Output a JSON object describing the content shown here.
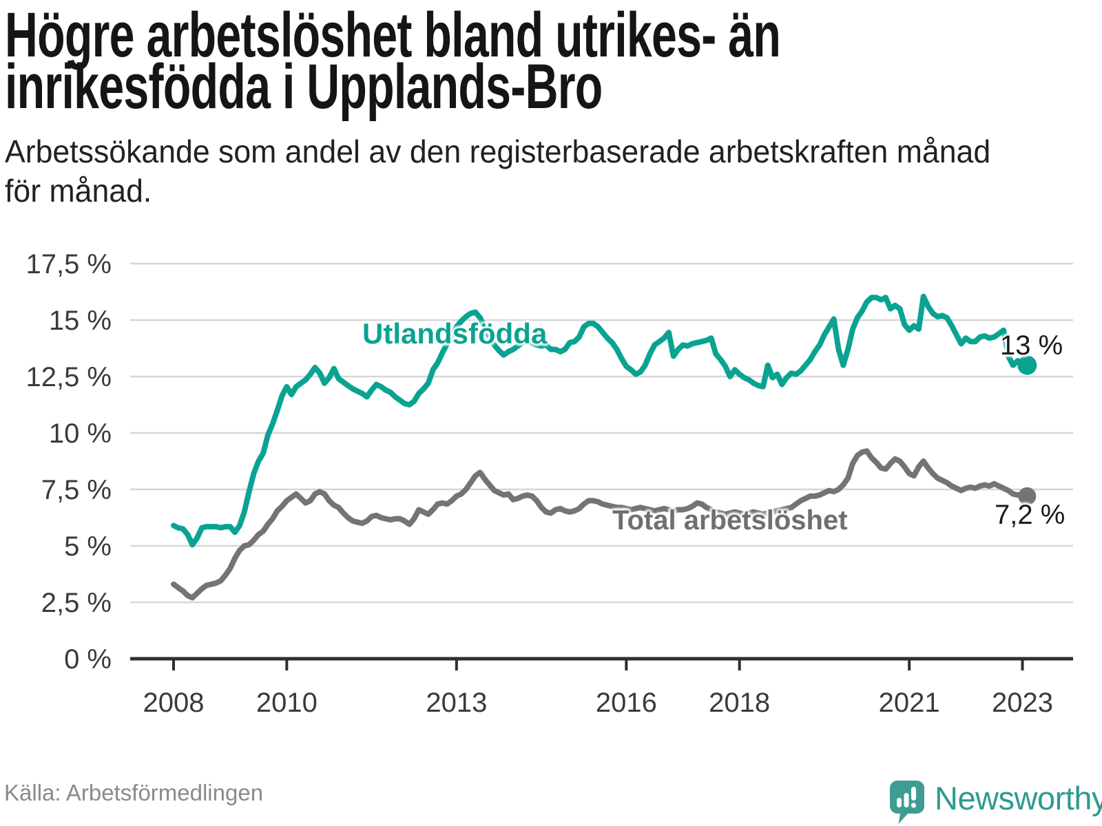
{
  "header": {
    "title_line1": "Högre arbetslöshet bland utrikes- än",
    "title_line2": "inrikesfödda i Upplands-Bro",
    "subtitle_line1": "Arbetssökande som andel av den registerbaserade arbetskraften månad",
    "subtitle_line2": "för månad."
  },
  "footer": {
    "source": "Källa: Arbetsförmedlingen",
    "brand": "Newsworthy"
  },
  "colors": {
    "accent_teal": "#0aa392",
    "line_gray": "#747474",
    "label_gray": "#6f6f6f",
    "gridline": "#d6d6d6",
    "axis": "#2e2e2e",
    "axis_text": "#3a3a3a",
    "title_text": "#151515",
    "end_label_text": "#1a1a1a",
    "source_text": "#8a8a8a",
    "brand_teal": "#2e9a90",
    "logo_bubble": "#3e9c93"
  },
  "chart_data": {
    "type": "line",
    "x_unit": "month",
    "x_start": "2008-01",
    "x_end": "2023-02",
    "grid": true,
    "ylim": [
      0,
      17.5
    ],
    "xlim_years": [
      2008,
      2023.17
    ],
    "y_ticks": [
      {
        "label": "17,5 %",
        "value": 17.5
      },
      {
        "label": "15 %",
        "value": 15
      },
      {
        "label": "12,5 %",
        "value": 12.5
      },
      {
        "label": "10 %",
        "value": 10
      },
      {
        "label": "7,5 %",
        "value": 7.5
      },
      {
        "label": "5 %",
        "value": 5
      },
      {
        "label": "2,5 %",
        "value": 2.5
      },
      {
        "label": "0 %",
        "value": 0
      }
    ],
    "x_ticks": [
      {
        "label": "2008",
        "year": 2008
      },
      {
        "label": "2010",
        "year": 2010
      },
      {
        "label": "2013",
        "year": 2013
      },
      {
        "label": "2016",
        "year": 2016
      },
      {
        "label": "2018",
        "year": 2018
      },
      {
        "label": "2021",
        "year": 2021
      },
      {
        "label": "2023",
        "year": 2023
      }
    ],
    "series": [
      {
        "name": "Utlandsfödda",
        "color": "#0aa392",
        "end_label": "13 %",
        "final_value": 13.0,
        "dot_radius": 14,
        "values": [
          5.9,
          5.8,
          5.75,
          5.5,
          5.05,
          5.35,
          5.8,
          5.85,
          5.85,
          5.85,
          5.8,
          5.85,
          5.85,
          5.6,
          5.9,
          6.5,
          7.4,
          8.2,
          8.75,
          9.1,
          9.9,
          10.4,
          11.0,
          11.65,
          12.05,
          11.7,
          12.05,
          12.2,
          12.35,
          12.6,
          12.9,
          12.65,
          12.2,
          12.45,
          12.85,
          12.4,
          12.25,
          12.1,
          11.95,
          11.85,
          11.75,
          11.6,
          11.9,
          12.15,
          12.05,
          11.9,
          11.8,
          11.6,
          11.45,
          11.3,
          11.25,
          11.4,
          11.75,
          11.95,
          12.2,
          12.8,
          13.1,
          13.55,
          13.95,
          14.35,
          14.7,
          14.95,
          15.15,
          15.3,
          15.35,
          15.1,
          14.65,
          14.25,
          13.9,
          13.65,
          13.45,
          13.6,
          13.7,
          13.85,
          14.0,
          14.1,
          14.0,
          13.9,
          13.85,
          13.9,
          13.7,
          13.7,
          13.6,
          13.7,
          14.0,
          14.05,
          14.25,
          14.7,
          14.85,
          14.85,
          14.7,
          14.45,
          14.2,
          14.0,
          13.7,
          13.3,
          12.95,
          12.8,
          12.6,
          12.7,
          13.0,
          13.5,
          13.9,
          14.05,
          14.2,
          14.45,
          13.4,
          13.7,
          13.9,
          13.85,
          13.95,
          14.0,
          14.05,
          14.1,
          14.2,
          13.5,
          13.25,
          12.95,
          12.5,
          12.8,
          12.6,
          12.45,
          12.35,
          12.2,
          12.1,
          12.05,
          13.0,
          12.45,
          12.6,
          12.15,
          12.45,
          12.65,
          12.6,
          12.75,
          13.0,
          13.25,
          13.6,
          13.9,
          14.35,
          14.7,
          15.05,
          13.7,
          13.0,
          13.7,
          14.6,
          15.1,
          15.4,
          15.8,
          16.0,
          16.0,
          15.9,
          16.0,
          15.5,
          15.65,
          15.5,
          14.8,
          14.55,
          14.75,
          14.6,
          16.05,
          15.6,
          15.3,
          15.15,
          15.2,
          15.1,
          14.75,
          14.35,
          13.95,
          14.2,
          14.05,
          14.05,
          14.25,
          14.3,
          14.2,
          14.25,
          14.4,
          14.55,
          13.4,
          13.0,
          13.2,
          13.05,
          13.0
        ]
      },
      {
        "name": "Total arbetslöshet",
        "color": "#747474",
        "end_label": "7,2 %",
        "final_value": 7.2,
        "dot_radius": 13,
        "values": [
          3.3,
          3.15,
          3.0,
          2.8,
          2.7,
          2.9,
          3.1,
          3.25,
          3.3,
          3.35,
          3.45,
          3.7,
          4.0,
          4.45,
          4.8,
          5.0,
          5.05,
          5.25,
          5.5,
          5.65,
          5.95,
          6.2,
          6.55,
          6.75,
          7.0,
          7.15,
          7.3,
          7.1,
          6.9,
          7.0,
          7.3,
          7.4,
          7.3,
          7.0,
          6.8,
          6.7,
          6.45,
          6.25,
          6.1,
          6.05,
          6.0,
          6.1,
          6.3,
          6.35,
          6.25,
          6.2,
          6.15,
          6.2,
          6.2,
          6.1,
          5.95,
          6.2,
          6.6,
          6.5,
          6.4,
          6.6,
          6.85,
          6.9,
          6.85,
          7.0,
          7.2,
          7.3,
          7.5,
          7.8,
          8.1,
          8.25,
          7.95,
          7.7,
          7.45,
          7.35,
          7.25,
          7.3,
          7.05,
          7.1,
          7.2,
          7.25,
          7.2,
          7.0,
          6.7,
          6.5,
          6.45,
          6.6,
          6.65,
          6.55,
          6.5,
          6.55,
          6.65,
          6.85,
          7.0,
          7.0,
          6.95,
          6.85,
          6.8,
          6.75,
          6.7,
          6.7,
          6.65,
          6.6,
          6.65,
          6.7,
          6.65,
          6.6,
          6.55,
          6.6,
          6.65,
          6.6,
          6.55,
          6.6,
          6.6,
          6.65,
          6.75,
          6.9,
          6.85,
          6.7,
          6.6,
          6.5,
          6.45,
          6.4,
          6.45,
          6.5,
          6.45,
          6.4,
          6.45,
          6.5,
          6.45,
          6.4,
          6.45,
          6.5,
          6.55,
          6.6,
          6.65,
          6.7,
          6.85,
          7.0,
          7.1,
          7.2,
          7.2,
          7.25,
          7.35,
          7.45,
          7.4,
          7.5,
          7.7,
          8.0,
          8.65,
          9.0,
          9.15,
          9.2,
          8.9,
          8.7,
          8.45,
          8.4,
          8.65,
          8.85,
          8.75,
          8.5,
          8.2,
          8.1,
          8.5,
          8.75,
          8.45,
          8.2,
          8.0,
          7.9,
          7.8,
          7.65,
          7.55,
          7.45,
          7.55,
          7.6,
          7.55,
          7.65,
          7.7,
          7.65,
          7.75,
          7.65,
          7.55,
          7.45,
          7.3,
          7.25,
          7.3,
          7.2
        ]
      }
    ]
  }
}
